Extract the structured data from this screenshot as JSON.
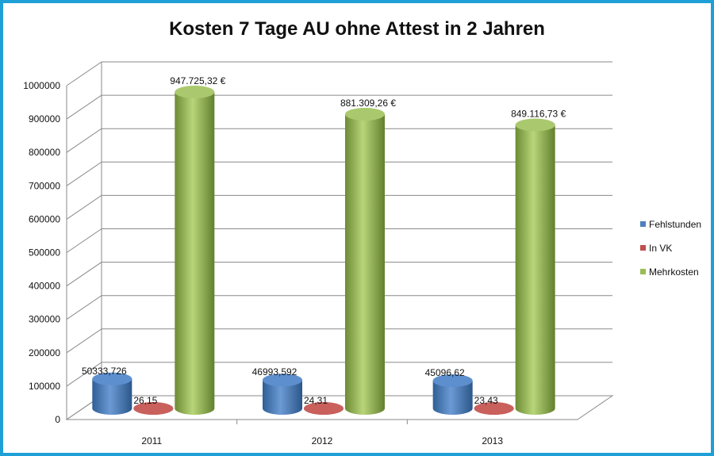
{
  "colors": {
    "border": "#1e9fd6",
    "Fehlstunden": "#4f81bd",
    "In VK": "#c0504d",
    "Mehrkosten": "#9bbb59"
  },
  "chart_data": {
    "type": "bar",
    "style": "3d-cylinder",
    "title": "Kosten 7 Tage AU ohne Attest in 2 Jahren",
    "xlabel": "",
    "ylabel": "",
    "ylim": [
      0,
      1000000
    ],
    "yticks": [
      "0",
      "100000",
      "200000",
      "300000",
      "400000",
      "500000",
      "600000",
      "700000",
      "800000",
      "900000",
      "1000000"
    ],
    "categories": [
      "2011",
      "2012",
      "2013"
    ],
    "grid": true,
    "legend_position": "right",
    "series": [
      {
        "name": "Fehlstunden",
        "values": [
          50333.726,
          46993.592,
          45096.62
        ],
        "labels": [
          "50333,726",
          "46993,592",
          "45096,62"
        ]
      },
      {
        "name": "In VK",
        "values": [
          26.15,
          24.31,
          23.43
        ],
        "labels": [
          "26,15",
          "24,31",
          "23,43"
        ]
      },
      {
        "name": "Mehrkosten",
        "values": [
          947725.32,
          881309.26,
          849116.73
        ],
        "labels": [
          "947.725,32 €",
          "881.309,26 €",
          "849.116,73 €"
        ]
      }
    ]
  }
}
